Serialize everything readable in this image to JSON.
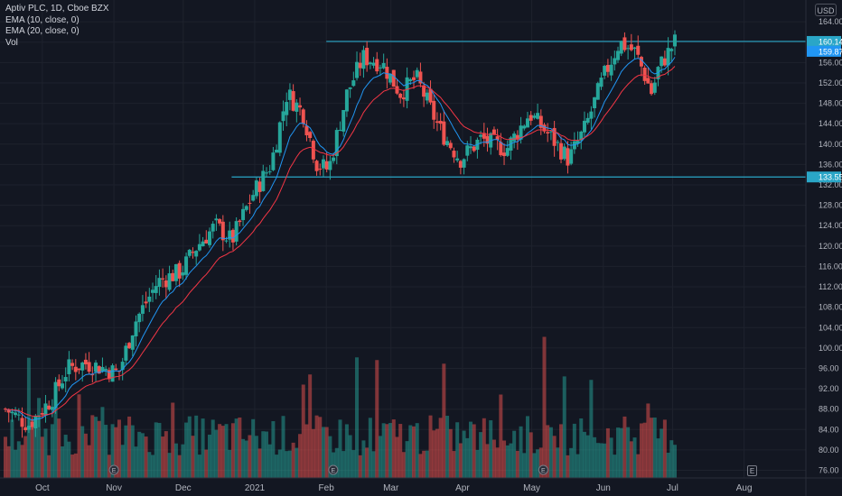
{
  "legend": {
    "symbol": "Aptiv PLC, 1D, Cboe BZX",
    "ema10": "EMA (10, close, 0)",
    "ema20": "EMA (20, close, 0)",
    "volume": "Vol"
  },
  "currency": "USD",
  "earnings_marker": "E",
  "dividend_marker": "E",
  "colors": {
    "background": "#131722",
    "up": "#26a69a",
    "down": "#ef5350",
    "ema10": "#2196f3",
    "ema20": "#f23645",
    "level": "#2aa6c7",
    "grid": "#1e222d"
  },
  "chart_data": {
    "type": "candlestick",
    "title": "Aptiv PLC, 1D, Cboe BZX",
    "y_axis_ticks": [
      "164.00",
      "160.00",
      "156.00",
      "152.00",
      "148.00",
      "144.00",
      "140.00",
      "136.00",
      "132.00",
      "128.00",
      "124.00",
      "120.00",
      "116.00",
      "112.00",
      "108.00",
      "104.00",
      "100.00",
      "96.00",
      "92.00",
      "88.00",
      "84.00",
      "80.00",
      "76.00"
    ],
    "ylim": [
      74.5,
      166.5
    ],
    "x_axis_ticks": [
      "Oct",
      "Nov",
      "Dec",
      "2021",
      "Feb",
      "Mar",
      "Apr",
      "May",
      "Jun",
      "Jul",
      "Aug"
    ],
    "price_labels": {
      "last": "160.14",
      "ema": "159.87",
      "support": "133.55"
    },
    "horizontal_levels": [
      {
        "value": 160.14,
        "from": "2021-02-01"
      },
      {
        "value": 133.55,
        "from": "2020-12-22"
      }
    ],
    "price_path": [
      [
        "2020-09-15",
        88
      ],
      [
        "2020-09-25",
        85
      ],
      [
        "2020-10-05",
        90
      ],
      [
        "2020-10-12",
        96
      ],
      [
        "2020-10-20",
        97
      ],
      [
        "2020-10-28",
        96
      ],
      [
        "2020-11-03",
        95
      ],
      [
        "2020-11-10",
        105
      ],
      [
        "2020-11-20",
        113
      ],
      [
        "2020-11-30",
        115
      ],
      [
        "2020-12-07",
        120
      ],
      [
        "2020-12-15",
        124
      ],
      [
        "2020-12-22",
        121
      ],
      [
        "2020-12-31",
        130
      ],
      [
        "2021-01-08",
        136
      ],
      [
        "2021-01-15",
        150
      ],
      [
        "2021-01-22",
        146
      ],
      [
        "2021-01-28",
        136
      ],
      [
        "2021-02-02",
        135
      ],
      [
        "2021-02-10",
        150
      ],
      [
        "2021-02-17",
        157
      ],
      [
        "2021-02-25",
        156
      ],
      [
        "2021-03-05",
        150
      ],
      [
        "2021-03-12",
        153
      ],
      [
        "2021-03-22",
        143
      ],
      [
        "2021-03-31",
        137
      ],
      [
        "2021-04-09",
        141
      ],
      [
        "2021-04-20",
        139
      ],
      [
        "2021-04-30",
        146
      ],
      [
        "2021-05-10",
        141
      ],
      [
        "2021-05-17",
        137
      ],
      [
        "2021-05-24",
        143
      ],
      [
        "2021-06-01",
        153
      ],
      [
        "2021-06-08",
        160
      ],
      [
        "2021-06-15",
        158
      ],
      [
        "2021-06-22",
        150
      ],
      [
        "2021-06-25",
        155
      ],
      [
        "2021-07-02",
        160
      ]
    ]
  }
}
